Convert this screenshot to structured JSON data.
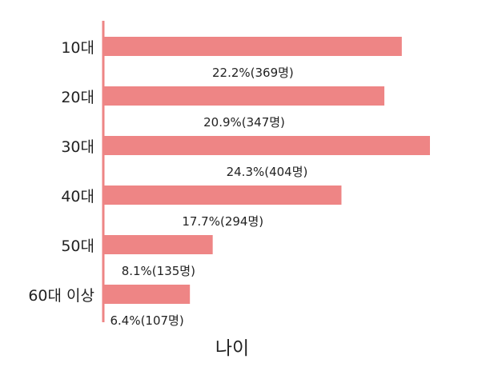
{
  "chart_data": {
    "type": "bar",
    "orientation": "horizontal",
    "categories": [
      "10대",
      "20대",
      "30대",
      "40대",
      "50대",
      "60대 이상"
    ],
    "values": [
      22.2,
      20.9,
      24.3,
      17.7,
      8.1,
      6.4
    ],
    "counts": [
      369,
      347,
      404,
      294,
      135,
      107
    ],
    "data_labels": [
      "22.2%(369명)",
      "20.9%(347명)",
      "24.3%(404명)",
      "17.7%(294명)",
      "8.1%(135명)",
      "6.4%(107명)"
    ],
    "title": "",
    "xlabel": "나이",
    "ylabel": "",
    "xlim": [
      0,
      24.3
    ],
    "grid": false,
    "legend": "none",
    "colors": {
      "bar": "#ee8585",
      "axis": "#ee8585",
      "text": "#222222"
    }
  }
}
